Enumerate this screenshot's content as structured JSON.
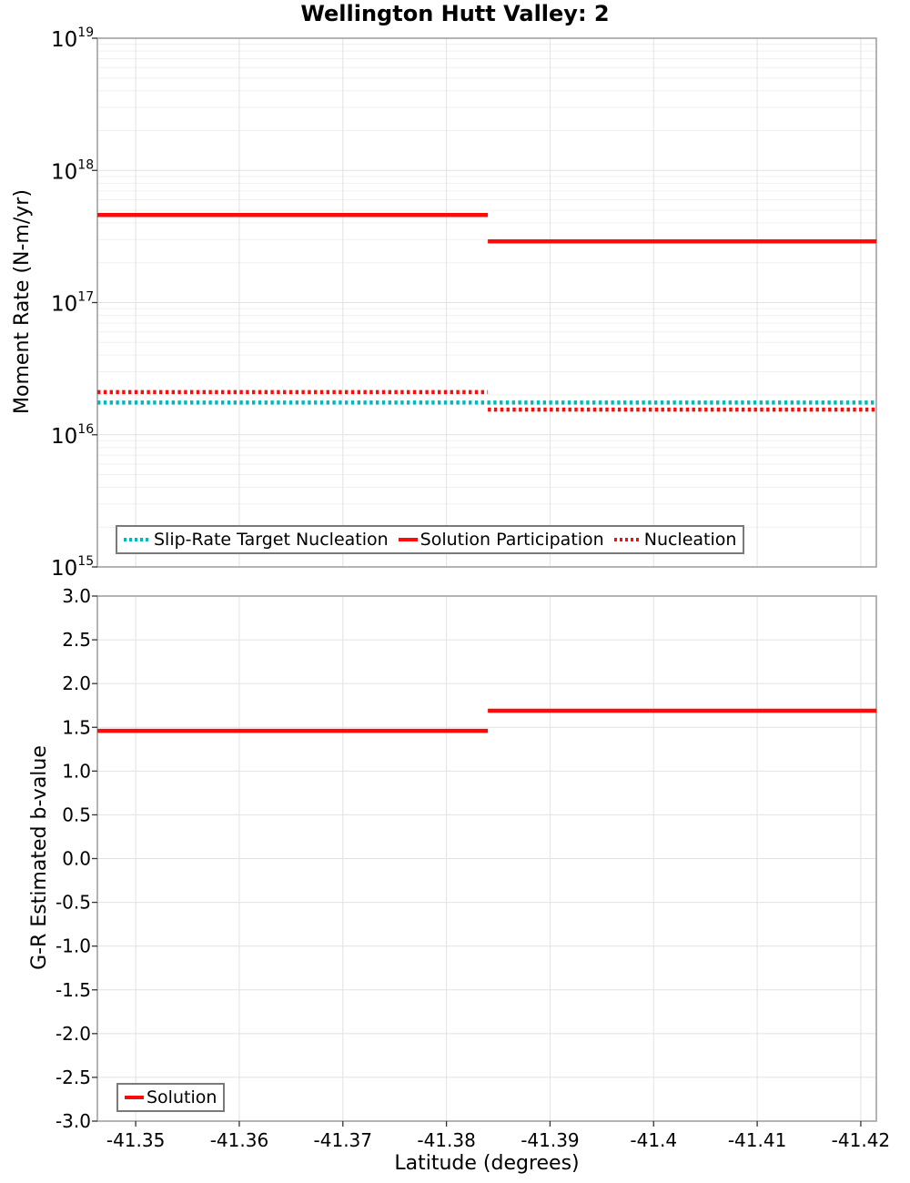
{
  "title": "Wellington Hutt Valley: 2",
  "colors": {
    "red": "#ff0a0a",
    "cyan": "#00b8bc",
    "grid_major": "#e2e2e2",
    "grid_minor": "#f0f0f0",
    "frame": "#9b9b9b",
    "tick": "#333333",
    "text": "#000000",
    "legend_border": "#7a7a7a"
  },
  "x_axis": {
    "label": "Latitude (degrees)",
    "range": [
      -41.3463,
      -41.4215
    ],
    "ticks": [
      -41.35,
      -41.36,
      -41.37,
      -41.38,
      -41.39,
      -41.4,
      -41.41,
      -41.42
    ],
    "tick_labels": [
      "-41.35",
      "-41.36",
      "-41.37",
      "-41.38",
      "-41.39",
      "-41.4",
      "-41.41",
      "-41.42"
    ]
  },
  "chart_data": [
    {
      "type": "line",
      "title": "Wellington Hutt Valley: 2",
      "ylabel": "Moment Rate (N-m/yr)",
      "yscale": "log",
      "ylim_exp": [
        15,
        19
      ],
      "ytick_exponents": [
        19,
        18,
        17,
        16,
        15
      ],
      "grid": true,
      "legend_position": "bottom-left",
      "series": [
        {
          "name": "Slip-Rate Target Nucleation",
          "color_key": "cyan",
          "style": "dotted",
          "segments": [
            {
              "x": [
                -41.3463,
                -41.4215
              ],
              "y": 1.75e+16
            }
          ]
        },
        {
          "name": "Solution Participation",
          "color_key": "red",
          "style": "solid",
          "segments": [
            {
              "x": [
                -41.3463,
                -41.384
              ],
              "y": 4.6e+17
            },
            {
              "x": [
                -41.384,
                -41.4215
              ],
              "y": 2.9e+17
            }
          ]
        },
        {
          "name": "Nucleation",
          "color_key": "red",
          "style": "dotted",
          "segments": [
            {
              "x": [
                -41.3463,
                -41.384
              ],
              "y": 2.1e+16
            },
            {
              "x": [
                -41.384,
                -41.4215
              ],
              "y": 1.55e+16
            }
          ]
        }
      ]
    },
    {
      "type": "line",
      "ylabel": "G-R Estimated b-value",
      "xlabel": "Latitude (degrees)",
      "yscale": "linear",
      "ylim": [
        -3.0,
        3.0
      ],
      "yticks": [
        3.0,
        2.5,
        2.0,
        1.5,
        1.0,
        0.5,
        0.0,
        -0.5,
        -1.0,
        -1.5,
        -2.0,
        -2.5,
        -3.0
      ],
      "ytick_labels": [
        "3.0",
        "2.5",
        "2.0",
        "1.5",
        "1.0",
        "0.5",
        "0.0",
        "-0.5",
        "-1.0",
        "-1.5",
        "-2.0",
        "-2.5",
        "-3.0"
      ],
      "grid": true,
      "legend_position": "bottom-left",
      "series": [
        {
          "name": "Solution",
          "color_key": "red",
          "style": "solid",
          "segments": [
            {
              "x": [
                -41.3463,
                -41.384
              ],
              "y": 1.46
            },
            {
              "x": [
                -41.384,
                -41.4215
              ],
              "y": 1.69
            }
          ]
        }
      ]
    }
  ]
}
